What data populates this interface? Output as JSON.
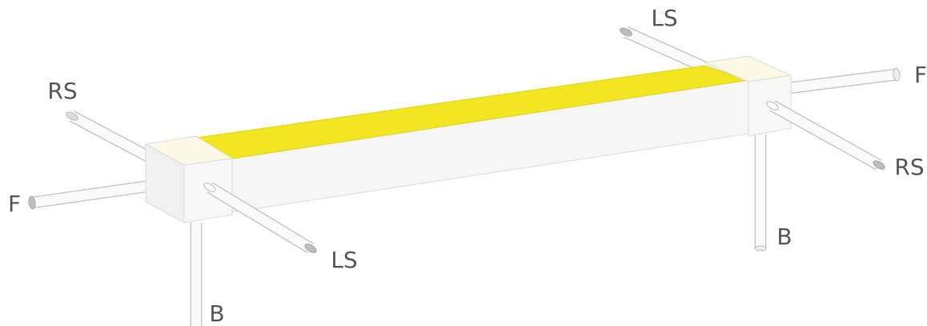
{
  "left_end": {
    "right_side": "RS",
    "front": "F",
    "left_side": "LS",
    "bottom": "B"
  },
  "right_end": {
    "left_side": "LS",
    "front": "F",
    "right_side": "RS",
    "bottom": "B"
  }
}
